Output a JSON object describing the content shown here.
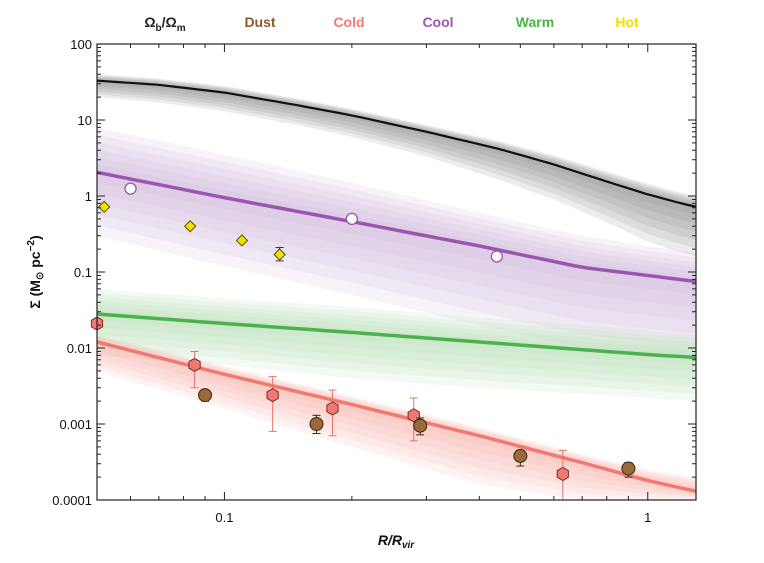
{
  "chart_data": {
    "type": "line",
    "x_scale": "log",
    "y_scale": "log",
    "xlim": [
      0.05,
      1.3
    ],
    "ylim": [
      0.0001,
      100
    ],
    "xlabel": "R/R",
    "xlabel_sub": "vir",
    "ylabel_main": "Σ (M",
    "ylabel_sun": "⊙",
    "ylabel_tail": " pc",
    "ylabel_sup": "−2",
    "ylabel_close": ")",
    "x_ticks": [
      {
        "value": 0.1,
        "label": "0.1"
      },
      {
        "value": 1,
        "label": "1"
      }
    ],
    "y_ticks": [
      {
        "value": 100,
        "label": "100"
      },
      {
        "value": 10,
        "label": "10"
      },
      {
        "value": 1,
        "label": "1"
      },
      {
        "value": 0.1,
        "label": "0.1"
      },
      {
        "value": 0.01,
        "label": "0.01"
      },
      {
        "value": 0.001,
        "label": "0.001"
      },
      {
        "value": 0.0001,
        "label": "0.0001"
      }
    ],
    "legend": [
      {
        "label": "Ω",
        "sub": "b",
        "mid": "/Ω",
        "sub2": "m",
        "color": "#222222"
      },
      {
        "label": "Dust",
        "color": "#8B5A2B"
      },
      {
        "label": "Cold",
        "color": "#F07A72"
      },
      {
        "label": "Cool",
        "color": "#9B55B0"
      },
      {
        "label": "Warm",
        "color": "#4CB34C"
      },
      {
        "label": "Hot",
        "color": "#F2E000"
      }
    ],
    "legend_placement": "top",
    "series": [
      {
        "component": "baryons",
        "color": "#111111",
        "band_color": "#8a8a8a",
        "x": [
          0.05,
          0.07,
          0.1,
          0.15,
          0.2,
          0.3,
          0.45,
          0.6,
          0.8,
          1.0,
          1.2,
          1.3
        ],
        "y": [
          33,
          29,
          23,
          15.5,
          11.5,
          7,
          4.1,
          2.6,
          1.55,
          1.05,
          0.8,
          0.72
        ],
        "band_low": [
          20,
          17,
          13,
          8.5,
          6,
          3.3,
          1.6,
          0.9,
          0.45,
          0.25,
          0.18,
          0.16
        ],
        "band_high": [
          40,
          35,
          28,
          19,
          14,
          8.6,
          5.2,
          3.4,
          2.1,
          1.45,
          1.1,
          1.0
        ]
      },
      {
        "component": "cool",
        "color": "#9B55B0",
        "band_color": "#cdb2dc",
        "x": [
          0.05,
          0.1,
          0.2,
          0.4,
          0.7,
          1.0,
          1.3
        ],
        "y": [
          2.05,
          0.95,
          0.46,
          0.22,
          0.115,
          0.09,
          0.075
        ],
        "band_low": [
          0.3,
          0.12,
          0.05,
          0.02,
          0.01,
          0.008,
          0.007
        ],
        "band_high": [
          8,
          3.5,
          1.5,
          0.6,
          0.3,
          0.22,
          0.18
        ]
      },
      {
        "component": "warm",
        "color": "#4CB34C",
        "band_color": "#b6dfb3",
        "x": [
          0.05,
          0.1,
          0.2,
          0.4,
          0.7,
          1.0,
          1.3
        ],
        "y": [
          0.028,
          0.021,
          0.016,
          0.012,
          0.0095,
          0.0082,
          0.0075
        ],
        "band_low": [
          0.008,
          0.006,
          0.004,
          0.003,
          0.0025,
          0.0022,
          0.002
        ],
        "band_high": [
          0.06,
          0.045,
          0.035,
          0.025,
          0.02,
          0.017,
          0.015
        ]
      },
      {
        "component": "cold",
        "color": "#F07A72",
        "band_color": "#f7b4ad",
        "x": [
          0.05,
          0.1,
          0.2,
          0.4,
          0.7,
          1.0,
          1.3
        ],
        "y": [
          0.012,
          0.0045,
          0.0018,
          0.0007,
          0.00031,
          0.00018,
          0.00013
        ],
        "band_low": [
          0.005,
          0.0016,
          0.0005,
          0.00016,
          0.0001,
          0.0001,
          0.0001
        ],
        "band_high": [
          0.015,
          0.0058,
          0.0023,
          0.0009,
          0.0004,
          0.00025,
          0.0002
        ]
      }
    ],
    "points": {
      "hot": {
        "marker": "diamond",
        "fill": "#F2E000",
        "x": [
          0.052,
          0.083,
          0.11,
          0.135
        ],
        "y": [
          0.72,
          0.4,
          0.26,
          0.17
        ],
        "err_low": [
          null,
          null,
          null,
          0.14
        ],
        "err_high": [
          null,
          null,
          null,
          0.21
        ]
      },
      "cool": {
        "marker": "circle-open",
        "stroke": "#9B55B0",
        "x": [
          0.06,
          0.2,
          0.44
        ],
        "y": [
          1.25,
          0.5,
          0.16
        ]
      },
      "cold": {
        "marker": "hexagon",
        "fill": "#F07A72",
        "x": [
          0.05,
          0.085,
          0.13,
          0.18,
          0.28,
          0.63
        ],
        "y": [
          0.021,
          0.006,
          0.0024,
          0.0016,
          0.0013,
          0.00022
        ],
        "err_low": [
          null,
          0.003,
          0.0008,
          0.0007,
          0.0006,
          0.0001
        ],
        "err_high": [
          null,
          0.009,
          0.0042,
          0.0028,
          0.0022,
          0.00045
        ]
      },
      "dust": {
        "marker": "circle",
        "fill": "#9A6A3A",
        "x": [
          0.09,
          0.165,
          0.29,
          0.5,
          0.9
        ],
        "y": [
          0.0024,
          0.001,
          0.00095,
          0.00038,
          0.00026
        ],
        "err_low": [
          0.002,
          0.00075,
          0.00072,
          0.00028,
          0.0002
        ],
        "err_high": [
          0.0028,
          0.0013,
          0.0012,
          0.00045,
          0.00031
        ]
      }
    }
  }
}
